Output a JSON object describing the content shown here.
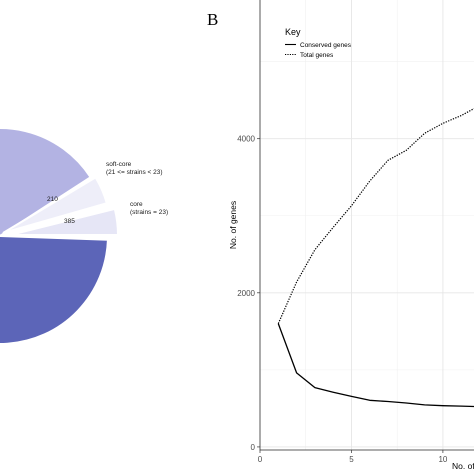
{
  "chart_data": [
    {
      "type": "pie",
      "slices": [
        {
          "label": "soft-core",
          "sublabel": "(21 <= strains < 23)",
          "value": 210,
          "color": "#eeeef9"
        },
        {
          "label": "core",
          "sublabel": "(strains = 23)",
          "value": 385,
          "color": "#e6e6f6"
        }
      ],
      "visible_unlabeled_slices": [
        {
          "color": "#b3b3e3"
        },
        {
          "color": "#5c65b8"
        }
      ]
    },
    {
      "type": "line",
      "panel_label": "B",
      "xlabel": "No. of",
      "ylabel": "No. of genes",
      "x_ticks": [
        0,
        5,
        10
      ],
      "y_ticks": [
        0,
        2000,
        4000
      ],
      "xlim": [
        0,
        11.7
      ],
      "ylim": [
        -40,
        5800
      ],
      "grid": true,
      "legend": {
        "title": "Key",
        "placement": "top-left",
        "entries": [
          {
            "label": "Conserved genes",
            "style": "solid"
          },
          {
            "label": "Total genes",
            "style": "dotted"
          }
        ]
      },
      "series": [
        {
          "name": "Conserved genes",
          "style": "solid",
          "x": [
            1,
            2,
            3,
            4,
            5,
            6,
            7,
            8,
            9,
            10,
            11,
            11.7
          ],
          "y": [
            1600,
            960,
            770,
            710,
            655,
            605,
            590,
            570,
            545,
            535,
            530,
            525
          ]
        },
        {
          "name": "Total genes",
          "style": "dotted",
          "x": [
            1,
            2,
            3,
            4,
            5,
            6,
            7,
            8,
            9,
            10,
            11,
            11.7
          ],
          "y": [
            1600,
            2140,
            2560,
            2850,
            3130,
            3450,
            3720,
            3850,
            4070,
            4200,
            4300,
            4390
          ]
        }
      ]
    }
  ]
}
